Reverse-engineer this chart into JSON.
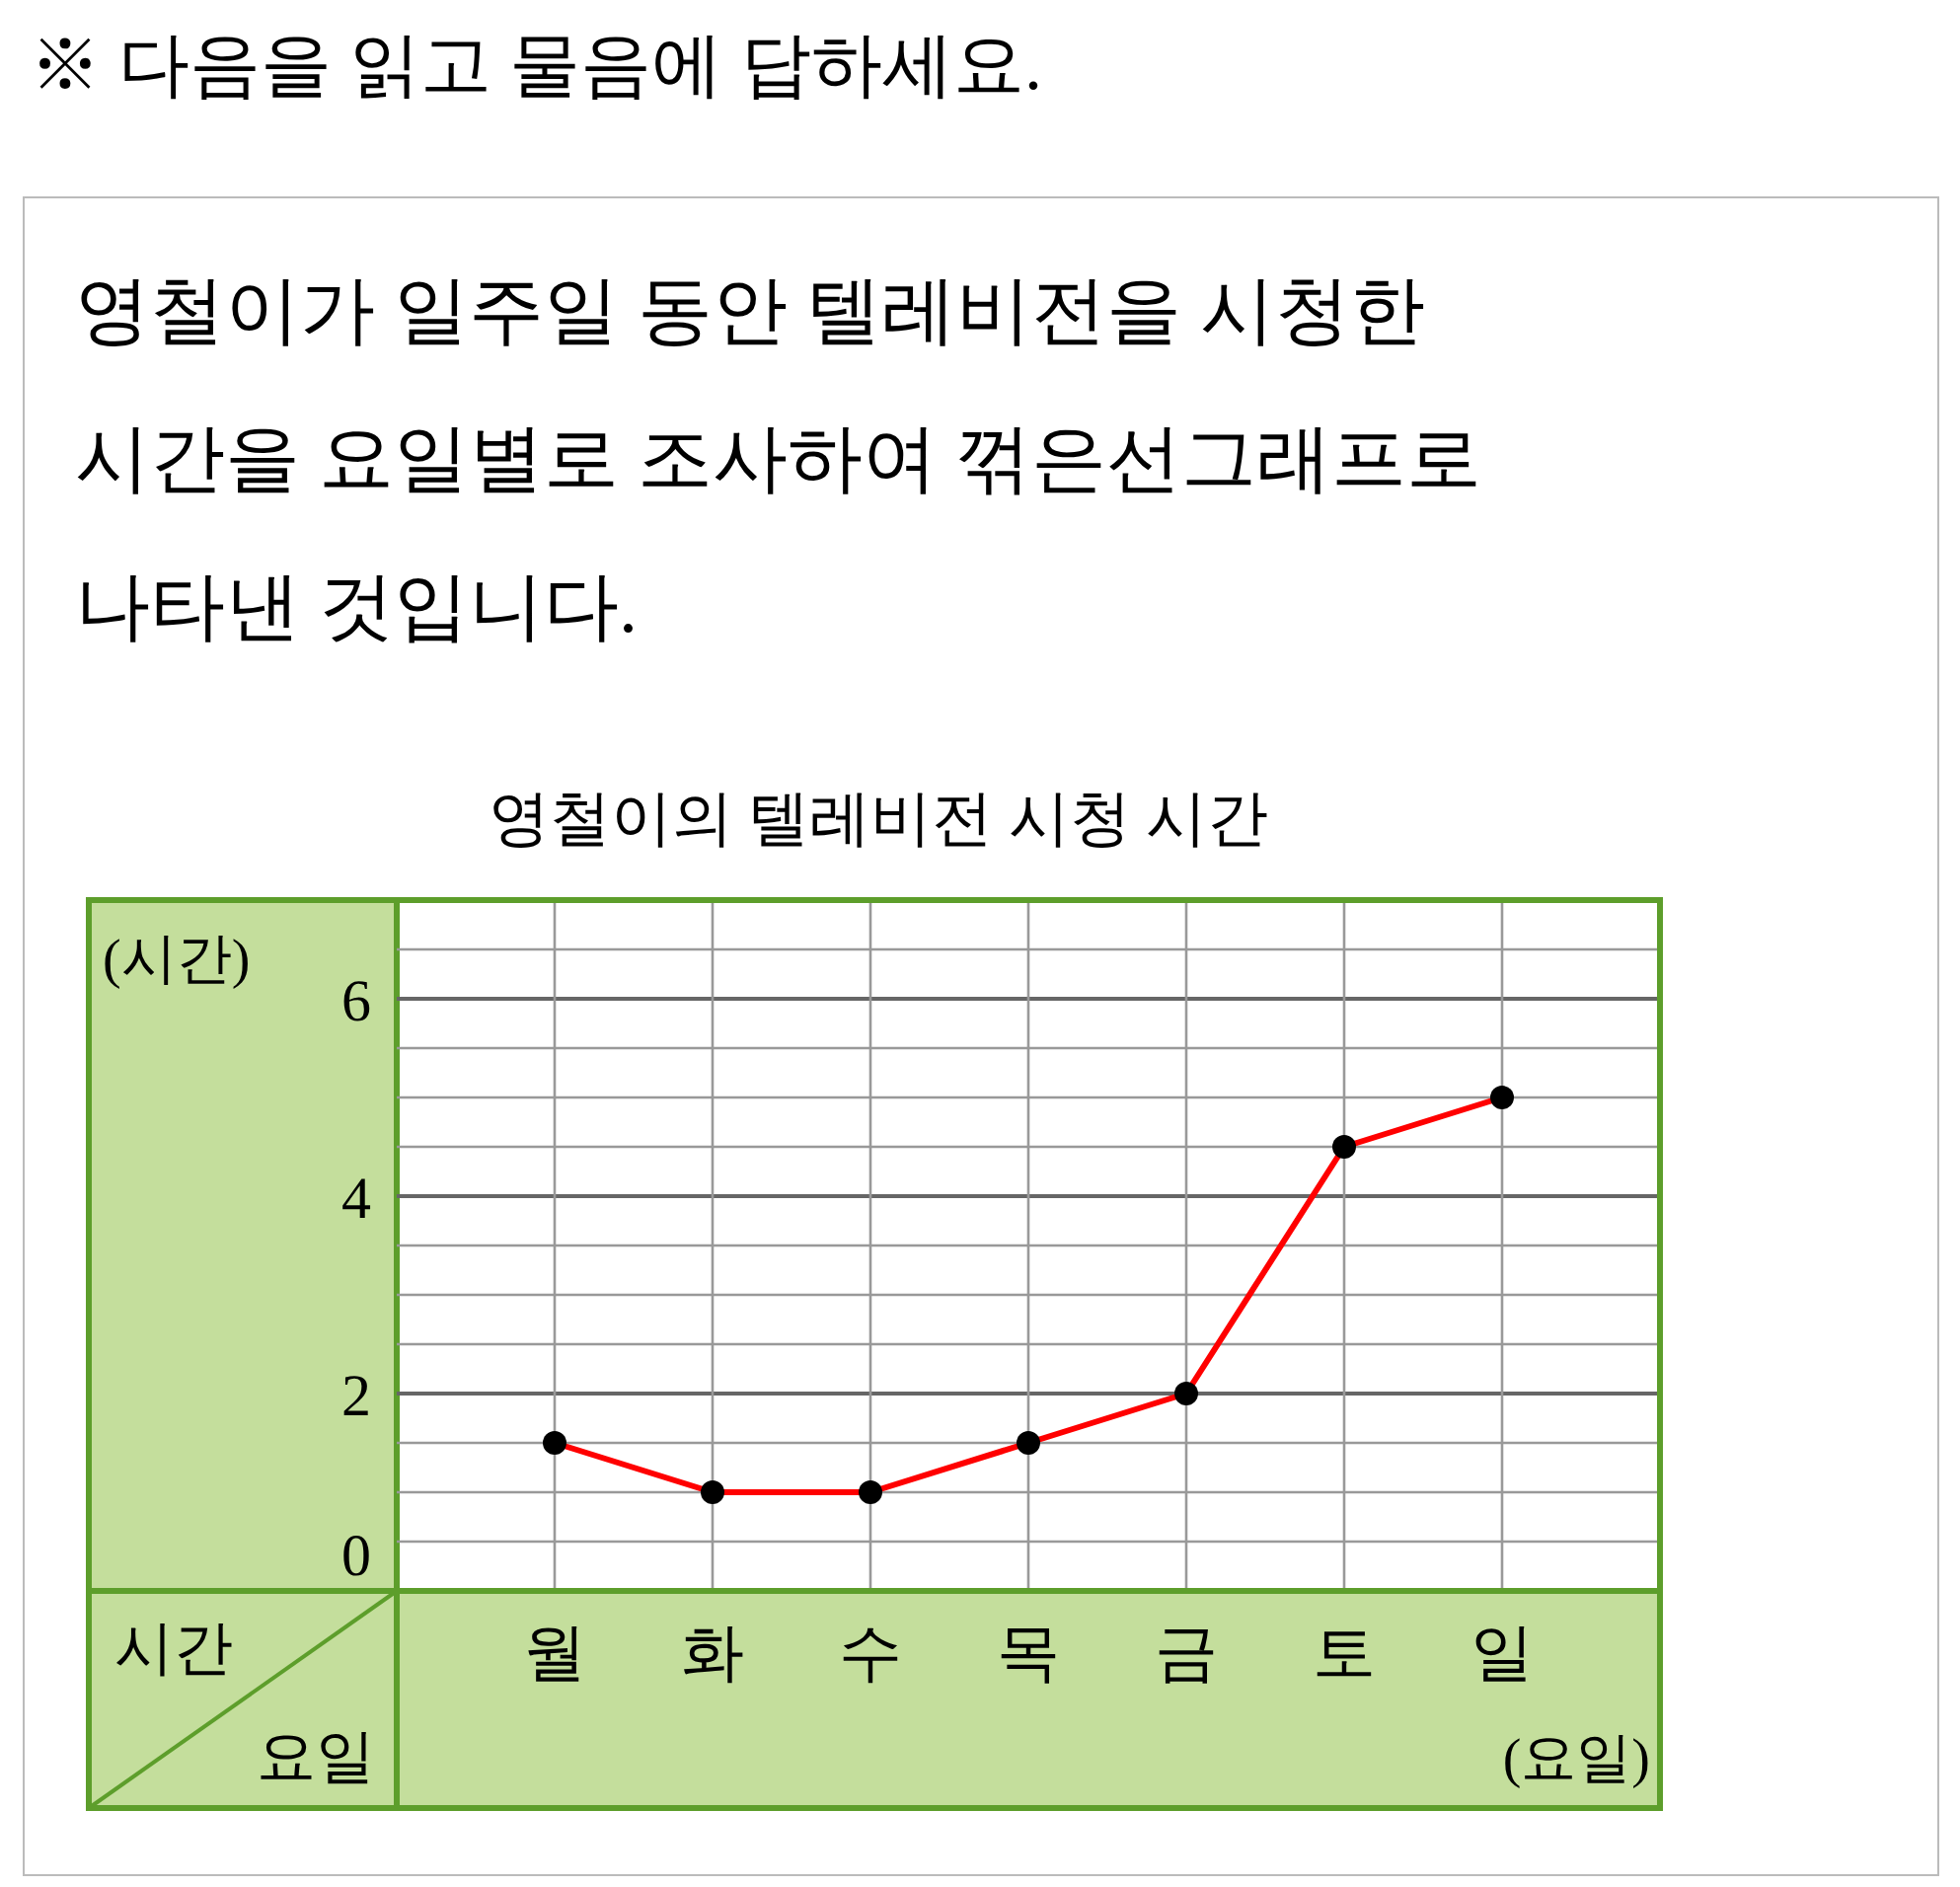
{
  "chart_data": {
    "type": "line",
    "title": "영철이의 텔레비전 시청 시간",
    "annotations": [
      "※ 다음을 읽고 물음에 답하세요.",
      "영철이가 일주일 동안 텔레비전을 시청한",
      "시간을 요일별로 조사하여 꺾은선그래프로",
      "나타낸 것입니다.",
      "시간",
      "요일"
    ],
    "xlabel": "(요일)",
    "ylabel": "(시간)",
    "categories": [
      "월",
      "화",
      "수",
      "목",
      "금",
      "토",
      "일"
    ],
    "series": [
      {
        "color": "#ff0000",
        "values": [
          1.5,
          1,
          1,
          1.5,
          2,
          4.5,
          5
        ]
      }
    ],
    "ylim": [
      0,
      7
    ],
    "yticks": [
      0,
      {
        "value": 0.5,
        "label": null
      },
      {
        "value": 1,
        "label": null
      },
      {
        "value": 1.5,
        "label": null
      },
      2,
      {
        "value": 2.5,
        "label": null
      },
      {
        "value": 3,
        "label": null
      },
      {
        "value": 3.5,
        "label": null
      },
      4,
      {
        "value": 4.5,
        "label": null
      },
      {
        "value": 5,
        "label": null
      },
      {
        "value": 5.5,
        "label": null
      },
      6,
      {
        "value": 6.5,
        "label": null
      }
    ],
    "grid": true,
    "marker": "circle",
    "line_style": "solid"
  }
}
